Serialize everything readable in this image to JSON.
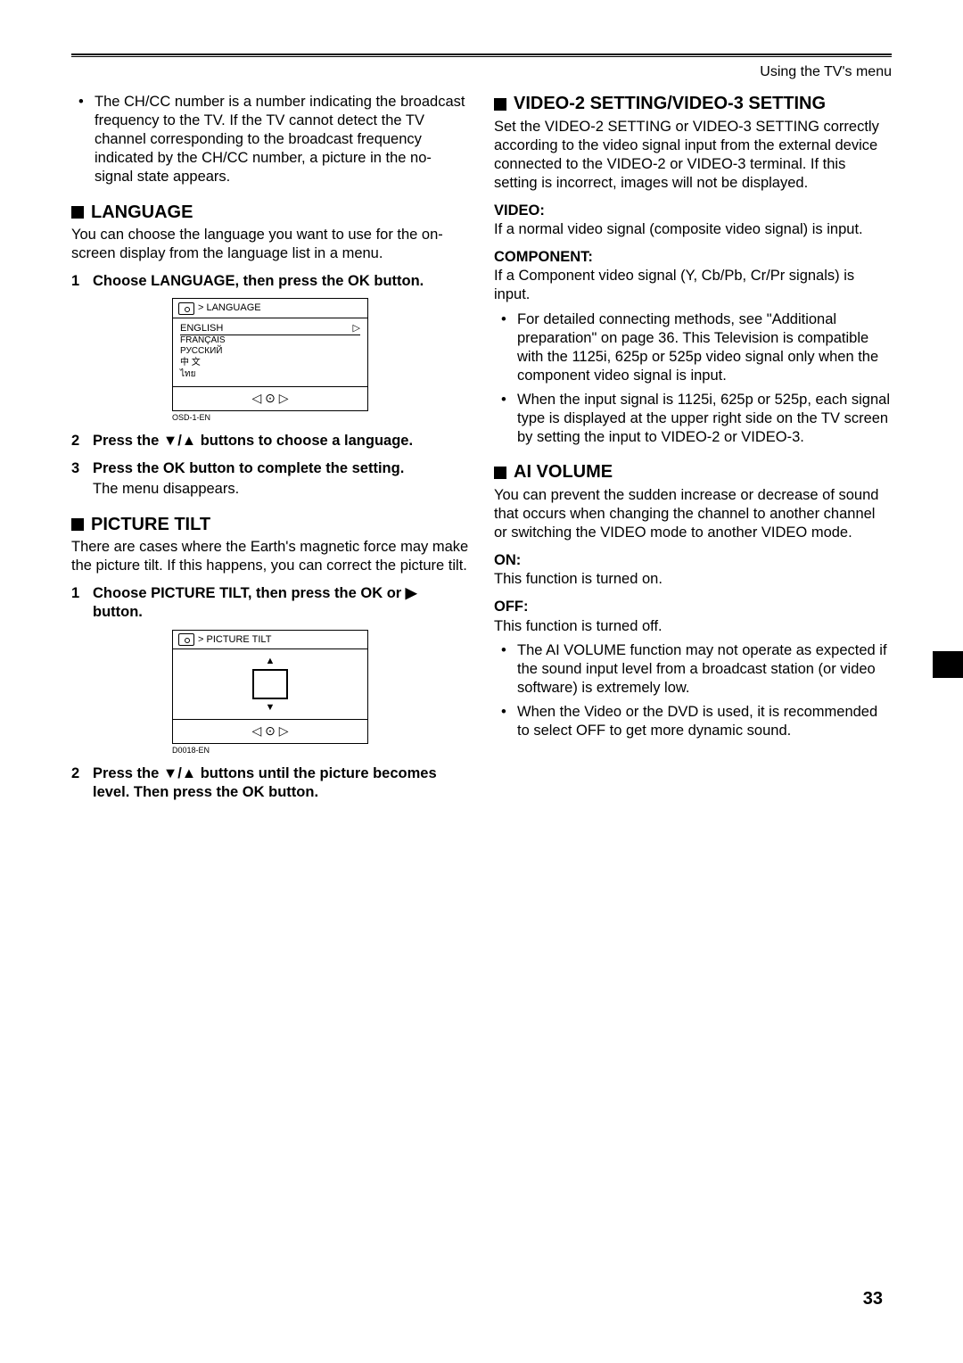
{
  "header": {
    "pageContext": "Using the TV's menu"
  },
  "left": {
    "intro_bullet": "The CH/CC number is a number indicating the broadcast frequency to the TV. If the TV cannot detect the TV channel corresponding to the broadcast frequency indicated by the CH/CC number, a picture in the no-signal state appears.",
    "language": {
      "heading": "LANGUAGE",
      "intro": "You can choose the language you want to use for the on-screen display from the language list in a menu.",
      "step1": "Choose LANGUAGE, then press the OK button.",
      "menu": {
        "title": "> LANGUAGE",
        "selected": "ENGLISH",
        "items": [
          "FRANÇAIS",
          "РУССКИЙ",
          "中 文",
          "ไทย"
        ],
        "caption": "OSD-1-EN"
      },
      "step2": "Press the ▼/▲ buttons to choose a language.",
      "step3": "Press the OK button to complete the setting.",
      "step3_note": "The menu disappears."
    },
    "tilt": {
      "heading": "PICTURE TILT",
      "intro": "There are cases where the Earth's magnetic force may make the picture tilt. If this happens, you can correct the picture tilt.",
      "step1": "Choose PICTURE TILT, then press the OK or ▶ button.",
      "menu": {
        "title": "> PICTURE TILT",
        "caption": "D0018-EN"
      },
      "step2": "Press the ▼/▲ buttons until the picture becomes level. Then press the OK button."
    }
  },
  "right": {
    "video": {
      "heading": "VIDEO-2 SETTING/VIDEO-3 SETTING",
      "intro": "Set the VIDEO-2 SETTING or VIDEO-3 SETTING correctly according to the video signal input from the external device connected to the VIDEO-2 or VIDEO-3 terminal. If this setting is incorrect, images will not be displayed.",
      "video_label": "VIDEO:",
      "video_body": "If a normal video signal (composite video signal) is input.",
      "component_label": "COMPONENT:",
      "component_body": "If a Component video signal (Y, Cb/Pb, Cr/Pr signals) is input.",
      "b1": "For detailed connecting methods, see \"Additional preparation\" on page 36. This Television is compatible with the 1125i, 625p or 525p video signal only when the component video signal is input.",
      "b2": "When the input signal is 1125i, 625p or 525p, each signal type is displayed at the upper right side on the TV screen by setting the input to VIDEO-2 or VIDEO-3."
    },
    "ai": {
      "heading": "AI VOLUME",
      "intro": "You can prevent the sudden increase or decrease of sound that occurs when changing the channel to another channel or switching the VIDEO mode to another VIDEO mode.",
      "on_label": "ON:",
      "on_body": "This function is turned on.",
      "off_label": "OFF:",
      "off_body": "This function is turned off.",
      "b1": "The AI VOLUME function may not operate as expected if the sound input level from a broadcast station (or video software) is extremely low.",
      "b2": "When the Video or the DVD is used, it is recommended to select OFF to get more dynamic sound."
    }
  },
  "pageNumber": "33"
}
